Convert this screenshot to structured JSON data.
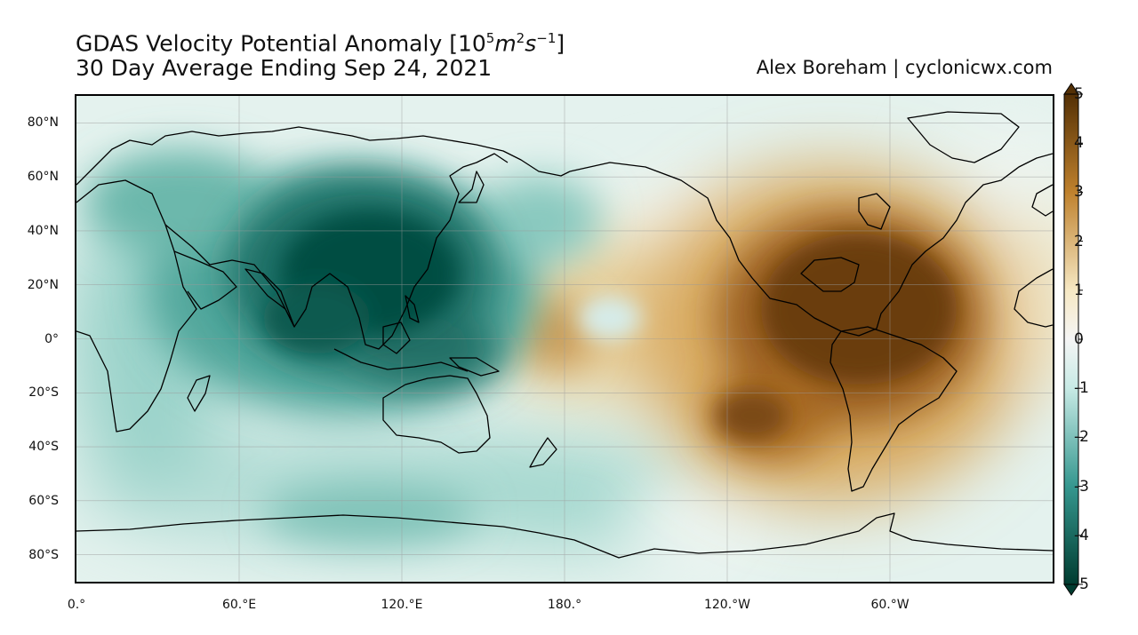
{
  "title": {
    "line1_prefix": "GDAS Velocity Potential Anomaly [10",
    "line1_exp1": "5",
    "line1_unit_m": "m",
    "line1_exp2": "2",
    "line1_unit_s": "s",
    "line1_exp3": "−1",
    "line1_suffix": "]",
    "line2": "30 Day Average Ending Sep 24, 2021"
  },
  "credit": "Alex Boreham | cyclonicwx.com",
  "map": {
    "projection": "PlateCarree, central longitude 180",
    "extent_lon": [
      0,
      360
    ],
    "extent_lat": [
      -90,
      90
    ],
    "grid": true,
    "lat_ticks": [
      "80°N",
      "60°N",
      "40°N",
      "20°N",
      "0°",
      "20°S",
      "40°S",
      "60°S",
      "80°S"
    ],
    "lon_ticks": [
      "0.°",
      "60.°E",
      "120.°E",
      "180.°",
      "120.°W",
      "60.°W"
    ]
  },
  "colorbar": {
    "colormap": "BrBG_r",
    "min": -5,
    "max": 5,
    "extend": "both",
    "ticks": [
      "5",
      "4",
      "3",
      "2",
      "1",
      "0",
      "-1",
      "-2",
      "-3",
      "-4",
      "-5"
    ],
    "colors": {
      "neg_max": "#003c30",
      "neg_mid": "#35978f",
      "neg_low": "#c7eae5",
      "zero": "#f5f5f5",
      "pos_low": "#f6e8c3",
      "pos_mid": "#bf812d",
      "pos_max": "#543005"
    }
  },
  "features": {
    "negative_center": "Indian Ocean / Maritime Continent (min ≈ -5)",
    "positive_center": "Eastern Pacific / Americas (max ≈ 5)"
  }
}
